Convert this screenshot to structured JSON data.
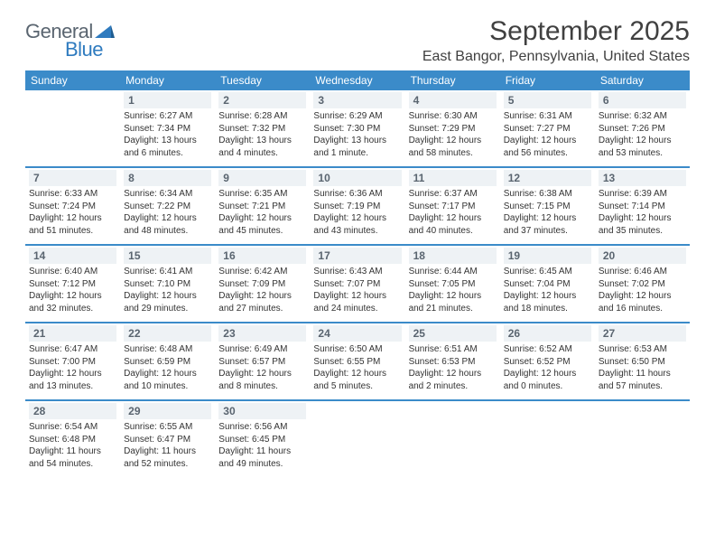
{
  "logo": {
    "text_general": "General",
    "text_blue": "Blue",
    "mark_color": "#2f7bbf",
    "general_color": "#5a6570"
  },
  "header": {
    "month_title": "September 2025",
    "location": "East Bangor, Pennsylvania, United States"
  },
  "colors": {
    "header_bar": "#3b8bc9",
    "header_text": "#ffffff",
    "daynum_bg": "#eef2f5",
    "daynum_text": "#5a6570",
    "body_text": "#333333",
    "week_divider": "#3b8bc9"
  },
  "typography": {
    "month_title_fontsize": 30,
    "location_fontsize": 16,
    "dow_fontsize": 12,
    "daynum_fontsize": 12,
    "body_fontsize": 10
  },
  "calendar": {
    "days_of_week": [
      "Sunday",
      "Monday",
      "Tuesday",
      "Wednesday",
      "Thursday",
      "Friday",
      "Saturday"
    ],
    "weeks": [
      [
        null,
        {
          "n": "1",
          "sunrise": "Sunrise: 6:27 AM",
          "sunset": "Sunset: 7:34 PM",
          "daylight1": "Daylight: 13 hours",
          "daylight2": "and 6 minutes."
        },
        {
          "n": "2",
          "sunrise": "Sunrise: 6:28 AM",
          "sunset": "Sunset: 7:32 PM",
          "daylight1": "Daylight: 13 hours",
          "daylight2": "and 4 minutes."
        },
        {
          "n": "3",
          "sunrise": "Sunrise: 6:29 AM",
          "sunset": "Sunset: 7:30 PM",
          "daylight1": "Daylight: 13 hours",
          "daylight2": "and 1 minute."
        },
        {
          "n": "4",
          "sunrise": "Sunrise: 6:30 AM",
          "sunset": "Sunset: 7:29 PM",
          "daylight1": "Daylight: 12 hours",
          "daylight2": "and 58 minutes."
        },
        {
          "n": "5",
          "sunrise": "Sunrise: 6:31 AM",
          "sunset": "Sunset: 7:27 PM",
          "daylight1": "Daylight: 12 hours",
          "daylight2": "and 56 minutes."
        },
        {
          "n": "6",
          "sunrise": "Sunrise: 6:32 AM",
          "sunset": "Sunset: 7:26 PM",
          "daylight1": "Daylight: 12 hours",
          "daylight2": "and 53 minutes."
        }
      ],
      [
        {
          "n": "7",
          "sunrise": "Sunrise: 6:33 AM",
          "sunset": "Sunset: 7:24 PM",
          "daylight1": "Daylight: 12 hours",
          "daylight2": "and 51 minutes."
        },
        {
          "n": "8",
          "sunrise": "Sunrise: 6:34 AM",
          "sunset": "Sunset: 7:22 PM",
          "daylight1": "Daylight: 12 hours",
          "daylight2": "and 48 minutes."
        },
        {
          "n": "9",
          "sunrise": "Sunrise: 6:35 AM",
          "sunset": "Sunset: 7:21 PM",
          "daylight1": "Daylight: 12 hours",
          "daylight2": "and 45 minutes."
        },
        {
          "n": "10",
          "sunrise": "Sunrise: 6:36 AM",
          "sunset": "Sunset: 7:19 PM",
          "daylight1": "Daylight: 12 hours",
          "daylight2": "and 43 minutes."
        },
        {
          "n": "11",
          "sunrise": "Sunrise: 6:37 AM",
          "sunset": "Sunset: 7:17 PM",
          "daylight1": "Daylight: 12 hours",
          "daylight2": "and 40 minutes."
        },
        {
          "n": "12",
          "sunrise": "Sunrise: 6:38 AM",
          "sunset": "Sunset: 7:15 PM",
          "daylight1": "Daylight: 12 hours",
          "daylight2": "and 37 minutes."
        },
        {
          "n": "13",
          "sunrise": "Sunrise: 6:39 AM",
          "sunset": "Sunset: 7:14 PM",
          "daylight1": "Daylight: 12 hours",
          "daylight2": "and 35 minutes."
        }
      ],
      [
        {
          "n": "14",
          "sunrise": "Sunrise: 6:40 AM",
          "sunset": "Sunset: 7:12 PM",
          "daylight1": "Daylight: 12 hours",
          "daylight2": "and 32 minutes."
        },
        {
          "n": "15",
          "sunrise": "Sunrise: 6:41 AM",
          "sunset": "Sunset: 7:10 PM",
          "daylight1": "Daylight: 12 hours",
          "daylight2": "and 29 minutes."
        },
        {
          "n": "16",
          "sunrise": "Sunrise: 6:42 AM",
          "sunset": "Sunset: 7:09 PM",
          "daylight1": "Daylight: 12 hours",
          "daylight2": "and 27 minutes."
        },
        {
          "n": "17",
          "sunrise": "Sunrise: 6:43 AM",
          "sunset": "Sunset: 7:07 PM",
          "daylight1": "Daylight: 12 hours",
          "daylight2": "and 24 minutes."
        },
        {
          "n": "18",
          "sunrise": "Sunrise: 6:44 AM",
          "sunset": "Sunset: 7:05 PM",
          "daylight1": "Daylight: 12 hours",
          "daylight2": "and 21 minutes."
        },
        {
          "n": "19",
          "sunrise": "Sunrise: 6:45 AM",
          "sunset": "Sunset: 7:04 PM",
          "daylight1": "Daylight: 12 hours",
          "daylight2": "and 18 minutes."
        },
        {
          "n": "20",
          "sunrise": "Sunrise: 6:46 AM",
          "sunset": "Sunset: 7:02 PM",
          "daylight1": "Daylight: 12 hours",
          "daylight2": "and 16 minutes."
        }
      ],
      [
        {
          "n": "21",
          "sunrise": "Sunrise: 6:47 AM",
          "sunset": "Sunset: 7:00 PM",
          "daylight1": "Daylight: 12 hours",
          "daylight2": "and 13 minutes."
        },
        {
          "n": "22",
          "sunrise": "Sunrise: 6:48 AM",
          "sunset": "Sunset: 6:59 PM",
          "daylight1": "Daylight: 12 hours",
          "daylight2": "and 10 minutes."
        },
        {
          "n": "23",
          "sunrise": "Sunrise: 6:49 AM",
          "sunset": "Sunset: 6:57 PM",
          "daylight1": "Daylight: 12 hours",
          "daylight2": "and 8 minutes."
        },
        {
          "n": "24",
          "sunrise": "Sunrise: 6:50 AM",
          "sunset": "Sunset: 6:55 PM",
          "daylight1": "Daylight: 12 hours",
          "daylight2": "and 5 minutes."
        },
        {
          "n": "25",
          "sunrise": "Sunrise: 6:51 AM",
          "sunset": "Sunset: 6:53 PM",
          "daylight1": "Daylight: 12 hours",
          "daylight2": "and 2 minutes."
        },
        {
          "n": "26",
          "sunrise": "Sunrise: 6:52 AM",
          "sunset": "Sunset: 6:52 PM",
          "daylight1": "Daylight: 12 hours",
          "daylight2": "and 0 minutes."
        },
        {
          "n": "27",
          "sunrise": "Sunrise: 6:53 AM",
          "sunset": "Sunset: 6:50 PM",
          "daylight1": "Daylight: 11 hours",
          "daylight2": "and 57 minutes."
        }
      ],
      [
        {
          "n": "28",
          "sunrise": "Sunrise: 6:54 AM",
          "sunset": "Sunset: 6:48 PM",
          "daylight1": "Daylight: 11 hours",
          "daylight2": "and 54 minutes."
        },
        {
          "n": "29",
          "sunrise": "Sunrise: 6:55 AM",
          "sunset": "Sunset: 6:47 PM",
          "daylight1": "Daylight: 11 hours",
          "daylight2": "and 52 minutes."
        },
        {
          "n": "30",
          "sunrise": "Sunrise: 6:56 AM",
          "sunset": "Sunset: 6:45 PM",
          "daylight1": "Daylight: 11 hours",
          "daylight2": "and 49 minutes."
        },
        null,
        null,
        null,
        null
      ]
    ]
  }
}
